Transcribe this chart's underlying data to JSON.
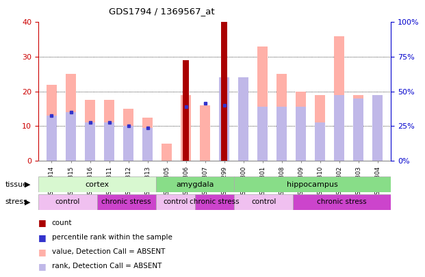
{
  "title": "GDS1794 / 1369567_at",
  "samples": [
    "GSM53314",
    "GSM53315",
    "GSM53316",
    "GSM53311",
    "GSM53312",
    "GSM53313",
    "GSM53305",
    "GSM53306",
    "GSM53307",
    "GSM53299",
    "GSM53300",
    "GSM53301",
    "GSM53308",
    "GSM53309",
    "GSM53310",
    "GSM53302",
    "GSM53303",
    "GSM53304"
  ],
  "count_values": [
    0,
    0,
    0,
    0,
    0,
    0,
    0,
    29,
    0,
    40,
    0,
    0,
    0,
    0,
    0,
    0,
    0,
    0
  ],
  "pink_bar_values": [
    22,
    25,
    17.5,
    17.5,
    15,
    12.5,
    5,
    19,
    16,
    24,
    23.5,
    33,
    25,
    20,
    19,
    36,
    19,
    19
  ],
  "blue_dot_values": [
    13,
    14,
    11,
    11,
    10,
    9.5,
    0,
    15.5,
    16.5,
    16,
    0,
    0,
    0,
    0,
    0,
    0,
    0,
    0
  ],
  "lavender_bar_values": [
    13,
    14,
    11,
    11,
    10,
    9.5,
    0,
    0,
    0,
    24,
    24,
    15.5,
    15.5,
    15.5,
    11,
    19,
    18,
    19
  ],
  "count_present": [
    false,
    false,
    false,
    false,
    false,
    false,
    false,
    true,
    false,
    true,
    false,
    false,
    false,
    false,
    false,
    false,
    false,
    false
  ],
  "blue_present": [
    true,
    true,
    true,
    true,
    true,
    true,
    false,
    true,
    true,
    true,
    false,
    false,
    false,
    false,
    false,
    false,
    false,
    false
  ],
  "tissue_groups": [
    {
      "label": "cortex",
      "start": 0,
      "end": 6
    },
    {
      "label": "amygdala",
      "start": 6,
      "end": 10
    },
    {
      "label": "hippocampus",
      "start": 10,
      "end": 18
    }
  ],
  "stress_groups": [
    {
      "label": "control",
      "start": 0,
      "end": 3
    },
    {
      "label": "chronic stress",
      "start": 3,
      "end": 6
    },
    {
      "label": "control",
      "start": 6,
      "end": 8
    },
    {
      "label": "chronic stress",
      "start": 8,
      "end": 10
    },
    {
      "label": "control",
      "start": 10,
      "end": 13
    },
    {
      "label": "chronic stress",
      "start": 13,
      "end": 18
    }
  ],
  "ylim_left": [
    0,
    40
  ],
  "ylim_right": [
    0,
    100
  ],
  "yticks_left": [
    0,
    10,
    20,
    30,
    40
  ],
  "yticks_right": [
    0,
    25,
    50,
    75,
    100
  ],
  "bar_width": 0.55,
  "count_color": "#aa0000",
  "pink_color": "#ffb0a8",
  "blue_color": "#3333cc",
  "lavender_color": "#c0b8e8",
  "bg_color": "#ffffff",
  "left_axis_color": "#cc0000",
  "right_axis_color": "#0000cc",
  "tissue_color_light": "#d8f8d0",
  "tissue_color_medium": "#88dd88",
  "stress_color_control": "#f0c0f0",
  "stress_color_chronic": "#cc44cc"
}
